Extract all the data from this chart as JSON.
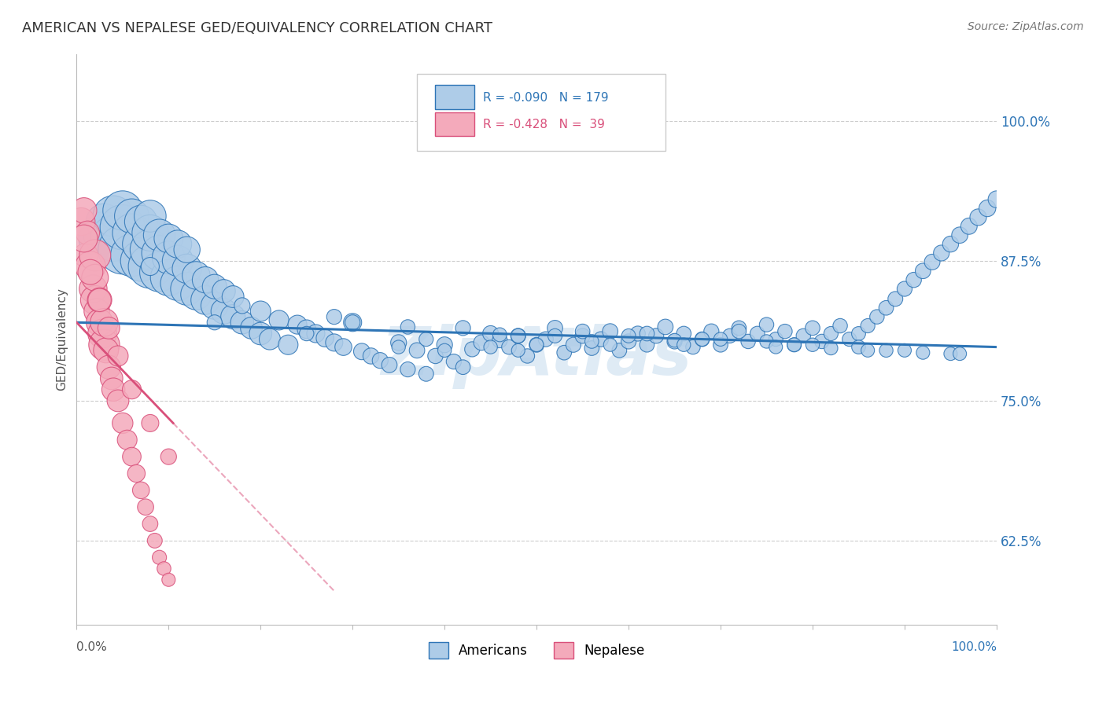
{
  "title": "AMERICAN VS NEPALESE GED/EQUIVALENCY CORRELATION CHART",
  "source": "Source: ZipAtlas.com",
  "ylabel": "GED/Equivalency",
  "xlim": [
    0.0,
    1.0
  ],
  "ylim": [
    0.55,
    1.06
  ],
  "blue_color": "#AECCE8",
  "pink_color": "#F4AABB",
  "blue_line_color": "#2E75B6",
  "pink_line_color": "#D94F7A",
  "legend_blue_label": "Americans",
  "legend_pink_label": "Nepalese",
  "watermark": "ZipAtlas",
  "background_color": "#FFFFFF",
  "grid_color": "#CCCCCC",
  "blue_scatter_x": [
    0.02,
    0.03,
    0.03,
    0.04,
    0.04,
    0.05,
    0.05,
    0.05,
    0.06,
    0.06,
    0.06,
    0.07,
    0.07,
    0.07,
    0.08,
    0.08,
    0.08,
    0.08,
    0.09,
    0.09,
    0.09,
    0.1,
    0.1,
    0.1,
    0.11,
    0.11,
    0.11,
    0.12,
    0.12,
    0.12,
    0.13,
    0.13,
    0.14,
    0.14,
    0.15,
    0.15,
    0.16,
    0.16,
    0.17,
    0.17,
    0.18,
    0.19,
    0.2,
    0.2,
    0.21,
    0.22,
    0.23,
    0.24,
    0.25,
    0.26,
    0.27,
    0.28,
    0.29,
    0.3,
    0.31,
    0.32,
    0.33,
    0.34,
    0.35,
    0.36,
    0.37,
    0.38,
    0.39,
    0.4,
    0.41,
    0.42,
    0.43,
    0.44,
    0.45,
    0.46,
    0.47,
    0.48,
    0.49,
    0.5,
    0.51,
    0.52,
    0.53,
    0.54,
    0.55,
    0.56,
    0.57,
    0.58,
    0.59,
    0.6,
    0.61,
    0.62,
    0.63,
    0.64,
    0.65,
    0.66,
    0.67,
    0.68,
    0.69,
    0.7,
    0.71,
    0.72,
    0.73,
    0.74,
    0.75,
    0.76,
    0.77,
    0.78,
    0.79,
    0.8,
    0.81,
    0.82,
    0.83,
    0.84,
    0.85,
    0.86,
    0.87,
    0.88,
    0.89,
    0.9,
    0.91,
    0.92,
    0.93,
    0.94,
    0.95,
    0.96,
    0.97,
    0.98,
    0.99,
    1.0,
    0.3,
    0.42,
    0.55,
    0.48,
    0.38,
    0.62,
    0.72,
    0.52,
    0.68,
    0.78,
    0.85,
    0.88,
    0.5,
    0.4,
    0.6,
    0.7,
    0.8,
    0.9,
    0.95,
    0.45,
    0.35,
    0.65,
    0.75,
    0.58,
    0.48,
    0.82,
    0.92,
    0.25,
    0.15,
    0.08,
    0.18,
    0.28,
    0.36,
    0.46,
    0.56,
    0.66,
    0.76,
    0.86,
    0.96
  ],
  "blue_scatter_y": [
    0.895,
    0.9,
    0.91,
    0.895,
    0.915,
    0.885,
    0.905,
    0.92,
    0.88,
    0.9,
    0.915,
    0.875,
    0.89,
    0.91,
    0.87,
    0.885,
    0.9,
    0.915,
    0.865,
    0.882,
    0.898,
    0.86,
    0.878,
    0.895,
    0.855,
    0.875,
    0.89,
    0.85,
    0.868,
    0.885,
    0.845,
    0.862,
    0.84,
    0.858,
    0.835,
    0.852,
    0.83,
    0.848,
    0.825,
    0.843,
    0.82,
    0.815,
    0.81,
    0.83,
    0.805,
    0.822,
    0.8,
    0.818,
    0.814,
    0.81,
    0.806,
    0.802,
    0.798,
    0.82,
    0.794,
    0.79,
    0.786,
    0.782,
    0.802,
    0.778,
    0.795,
    0.774,
    0.79,
    0.8,
    0.785,
    0.78,
    0.796,
    0.802,
    0.81,
    0.804,
    0.798,
    0.808,
    0.79,
    0.8,
    0.805,
    0.815,
    0.793,
    0.8,
    0.808,
    0.797,
    0.805,
    0.812,
    0.795,
    0.803,
    0.81,
    0.8,
    0.808,
    0.816,
    0.803,
    0.81,
    0.798,
    0.805,
    0.812,
    0.8,
    0.808,
    0.815,
    0.803,
    0.81,
    0.818,
    0.805,
    0.812,
    0.8,
    0.808,
    0.815,
    0.803,
    0.81,
    0.817,
    0.805,
    0.81,
    0.817,
    0.825,
    0.833,
    0.841,
    0.85,
    0.858,
    0.866,
    0.874,
    0.882,
    0.89,
    0.898,
    0.906,
    0.914,
    0.922,
    0.93,
    0.82,
    0.815,
    0.812,
    0.808,
    0.805,
    0.81,
    0.812,
    0.808,
    0.805,
    0.8,
    0.798,
    0.795,
    0.8,
    0.795,
    0.808,
    0.805,
    0.8,
    0.795,
    0.792,
    0.798,
    0.798,
    0.804,
    0.803,
    0.8,
    0.795,
    0.797,
    0.793,
    0.81,
    0.82,
    0.87,
    0.835,
    0.825,
    0.816,
    0.809,
    0.803,
    0.8,
    0.798,
    0.795,
    0.792
  ],
  "blue_scatter_size": [
    180,
    300,
    220,
    350,
    280,
    400,
    340,
    260,
    300,
    250,
    200,
    280,
    230,
    180,
    320,
    270,
    220,
    170,
    260,
    210,
    170,
    220,
    180,
    140,
    200,
    160,
    130,
    180,
    145,
    115,
    160,
    130,
    140,
    115,
    125,
    100,
    110,
    90,
    100,
    80,
    90,
    80,
    85,
    70,
    75,
    65,
    65,
    60,
    58,
    55,
    52,
    50,
    48,
    55,
    45,
    43,
    42,
    40,
    42,
    38,
    40,
    37,
    39,
    42,
    38,
    36,
    38,
    40,
    42,
    38,
    36,
    38,
    35,
    37,
    38,
    40,
    36,
    38,
    38,
    36,
    38,
    40,
    36,
    38,
    38,
    36,
    38,
    40,
    38,
    36,
    35,
    36,
    38,
    36,
    35,
    36,
    35,
    36,
    35,
    34,
    35,
    34,
    35,
    36,
    35,
    34,
    35,
    34,
    33,
    34,
    35,
    36,
    37,
    38,
    39,
    40,
    41,
    42,
    43,
    44,
    45,
    46,
    47,
    48,
    38,
    38,
    36,
    35,
    34,
    36,
    35,
    34,
    33,
    32,
    32,
    31,
    32,
    31,
    33,
    32,
    31,
    30,
    30,
    31,
    31,
    32,
    31,
    30,
    30,
    31,
    30,
    35,
    38,
    55,
    42,
    38,
    35,
    33,
    32,
    31,
    30,
    30,
    30
  ],
  "pink_scatter_x": [
    0.005,
    0.008,
    0.01,
    0.012,
    0.015,
    0.018,
    0.02,
    0.02,
    0.02,
    0.022,
    0.025,
    0.025,
    0.028,
    0.03,
    0.03,
    0.032,
    0.035,
    0.038,
    0.04,
    0.045,
    0.05,
    0.055,
    0.06,
    0.065,
    0.07,
    0.075,
    0.08,
    0.085,
    0.09,
    0.095,
    0.1,
    0.008,
    0.015,
    0.025,
    0.035,
    0.045,
    0.06,
    0.08,
    0.1
  ],
  "pink_scatter_y": [
    0.91,
    0.92,
    0.88,
    0.9,
    0.87,
    0.85,
    0.88,
    0.84,
    0.86,
    0.83,
    0.82,
    0.84,
    0.81,
    0.8,
    0.82,
    0.795,
    0.78,
    0.77,
    0.76,
    0.75,
    0.73,
    0.715,
    0.7,
    0.685,
    0.67,
    0.655,
    0.64,
    0.625,
    0.61,
    0.6,
    0.59,
    0.895,
    0.865,
    0.84,
    0.815,
    0.79,
    0.76,
    0.73,
    0.7
  ],
  "pink_scatter_size": [
    130,
    110,
    100,
    95,
    155,
    130,
    165,
    140,
    120,
    110,
    120,
    100,
    140,
    160,
    130,
    105,
    95,
    85,
    90,
    80,
    72,
    65,
    58,
    52,
    48,
    44,
    40,
    37,
    34,
    32,
    30,
    125,
    105,
    90,
    80,
    70,
    60,
    50,
    42
  ]
}
